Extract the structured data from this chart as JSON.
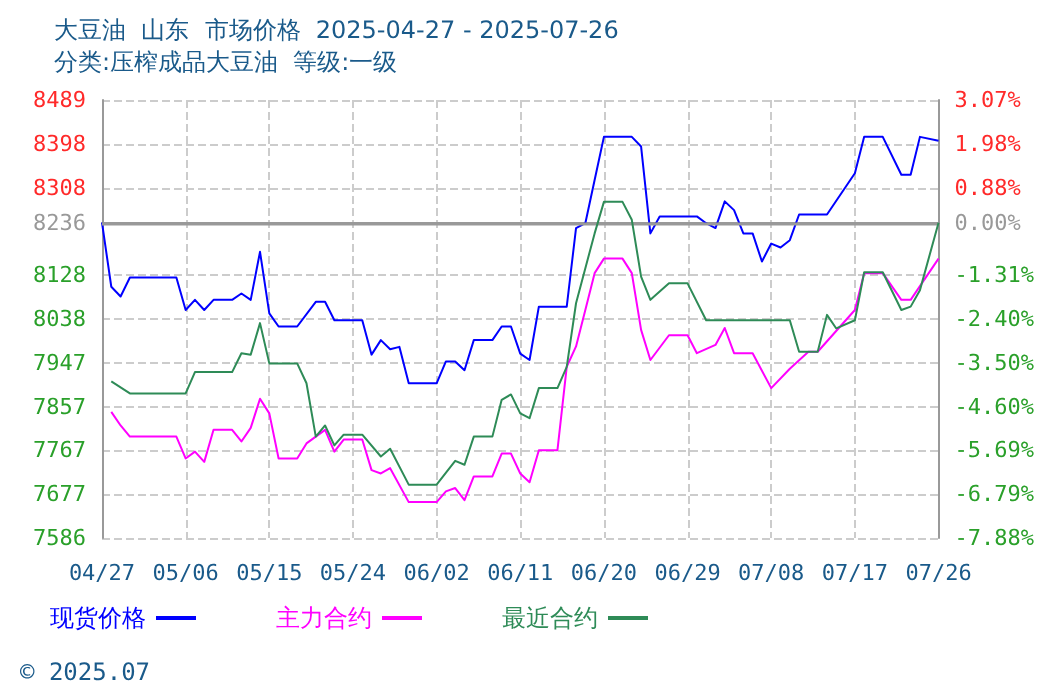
{
  "chart_data": {
    "type": "line",
    "title": "大豆油  山东  市场价格  2025-04-27 - 2025-07-26",
    "subtitle": "分类:压榨成品大豆油  等级:一级",
    "xlim": [
      "2025-04-27",
      "2025-07-26"
    ],
    "xticks": [
      {
        "value": "2025-04-27",
        "label": "04/27"
      },
      {
        "value": "2025-05-06",
        "label": "05/06"
      },
      {
        "value": "2025-05-15",
        "label": "05/15"
      },
      {
        "value": "2025-05-24",
        "label": "05/24"
      },
      {
        "value": "2025-06-02",
        "label": "06/02"
      },
      {
        "value": "2025-06-11",
        "label": "06/11"
      },
      {
        "value": "2025-06-20",
        "label": "06/20"
      },
      {
        "value": "2025-06-29",
        "label": "06/29"
      },
      {
        "value": "2025-07-08",
        "label": "07/08"
      },
      {
        "value": "2025-07-17",
        "label": "07/17"
      },
      {
        "value": "2025-07-26",
        "label": "07/26"
      }
    ],
    "ylim": [
      7586,
      8489
    ],
    "yticks": [
      7586,
      7677,
      7767,
      7857,
      7947,
      8038,
      8128,
      8236,
      8308,
      8398,
      8489
    ],
    "y2lim": [
      -7.88,
      3.07
    ],
    "y2ticks": [
      {
        "value": -7.88,
        "label": "-7.88%"
      },
      {
        "value": -6.79,
        "label": "-6.79%"
      },
      {
        "value": -5.69,
        "label": "-5.69%"
      },
      {
        "value": -4.6,
        "label": "-4.60%"
      },
      {
        "value": -3.5,
        "label": "-3.50%"
      },
      {
        "value": -2.4,
        "label": "-2.40%"
      },
      {
        "value": -1.31,
        "label": "-1.31%"
      },
      {
        "value": 0,
        "label": "0.00%"
      },
      {
        "value": 0.88,
        "label": "0.88%"
      },
      {
        "value": 1.98,
        "label": "1.98%"
      },
      {
        "value": 3.07,
        "label": "3.07%"
      }
    ],
    "ref_lines": [
      {
        "axis": "y",
        "value": 8236,
        "color": "#999999"
      }
    ],
    "grid": true,
    "legend": "bottom",
    "marker": "none",
    "line_style": "solid",
    "annotations": [
      "© 2025.07"
    ],
    "series": [
      {
        "name": "现货价格",
        "color": "#0000ff",
        "x": [
          "2025-04-27",
          "2025-04-28",
          "2025-04-29",
          "2025-04-30",
          "2025-05-05",
          "2025-05-06",
          "2025-05-07",
          "2025-05-08",
          "2025-05-09",
          "2025-05-11",
          "2025-05-12",
          "2025-05-13",
          "2025-05-14",
          "2025-05-15",
          "2025-05-16",
          "2025-05-18",
          "2025-05-20",
          "2025-05-21",
          "2025-05-22",
          "2025-05-25",
          "2025-05-26",
          "2025-05-27",
          "2025-05-28",
          "2025-05-29",
          "2025-05-30",
          "2025-06-02",
          "2025-06-03",
          "2025-06-04",
          "2025-06-05",
          "2025-06-06",
          "2025-06-08",
          "2025-06-09",
          "2025-06-10",
          "2025-06-11",
          "2025-06-12",
          "2025-06-13",
          "2025-06-16",
          "2025-06-17",
          "2025-06-18",
          "2025-06-19",
          "2025-06-20",
          "2025-06-23",
          "2025-06-24",
          "2025-06-25",
          "2025-06-26",
          "2025-06-30",
          "2025-07-01",
          "2025-07-02",
          "2025-07-03",
          "2025-07-04",
          "2025-07-05",
          "2025-07-06",
          "2025-07-07",
          "2025-07-08",
          "2025-07-09",
          "2025-07-10",
          "2025-07-11",
          "2025-07-14",
          "2025-07-17",
          "2025-07-18",
          "2025-07-20",
          "2025-07-22",
          "2025-07-23",
          "2025-07-24",
          "2025-07-26"
        ],
        "values": [
          8236,
          8104,
          8084,
          8123,
          8123,
          8056,
          8077,
          8056,
          8077,
          8077,
          8090,
          8077,
          8176,
          8049,
          8022,
          8022,
          8073,
          8073,
          8035,
          8035,
          7964,
          7994,
          7975,
          7980,
          7905,
          7905,
          7950,
          7950,
          7932,
          7994,
          7994,
          8022,
          8022,
          7966,
          7953,
          8063,
          8063,
          8225,
          8235,
          8324,
          8413,
          8413,
          8393,
          8214,
          8249,
          8249,
          8235,
          8225,
          8280,
          8262,
          8214,
          8214,
          8156,
          8193,
          8185,
          8200,
          8253,
          8253,
          8338,
          8413,
          8413,
          8335,
          8335,
          8413,
          8405
        ]
      },
      {
        "name": "主力合约",
        "color": "#ff00ff",
        "x": [
          "2025-04-28",
          "2025-04-29",
          "2025-04-30",
          "2025-05-05",
          "2025-05-06",
          "2025-05-07",
          "2025-05-08",
          "2025-05-09",
          "2025-05-11",
          "2025-05-12",
          "2025-05-13",
          "2025-05-14",
          "2025-05-15",
          "2025-05-16",
          "2025-05-18",
          "2025-05-19",
          "2025-05-21",
          "2025-05-22",
          "2025-05-23",
          "2025-05-25",
          "2025-05-26",
          "2025-05-27",
          "2025-05-28",
          "2025-05-30",
          "2025-06-02",
          "2025-06-03",
          "2025-06-04",
          "2025-06-05",
          "2025-06-06",
          "2025-06-08",
          "2025-06-09",
          "2025-06-10",
          "2025-06-11",
          "2025-06-12",
          "2025-06-13",
          "2025-06-15",
          "2025-06-16",
          "2025-06-17",
          "2025-06-18",
          "2025-06-19",
          "2025-06-20",
          "2025-06-22",
          "2025-06-23",
          "2025-06-24",
          "2025-06-25",
          "2025-06-27",
          "2025-06-29",
          "2025-06-30",
          "2025-07-02",
          "2025-07-03",
          "2025-07-04",
          "2025-07-06",
          "2025-07-08",
          "2025-07-10",
          "2025-07-12",
          "2025-07-13",
          "2025-07-17",
          "2025-07-18",
          "2025-07-20",
          "2025-07-22",
          "2025-07-23",
          "2025-07-26"
        ],
        "values": [
          7846,
          7818,
          7795,
          7795,
          7750,
          7764,
          7743,
          7809,
          7809,
          7785,
          7813,
          7873,
          7843,
          7750,
          7750,
          7781,
          7809,
          7764,
          7789,
          7789,
          7726,
          7719,
          7730,
          7660,
          7660,
          7682,
          7689,
          7664,
          7713,
          7713,
          7760,
          7760,
          7719,
          7701,
          7767,
          7767,
          7939,
          7981,
          8056,
          8132,
          8162,
          8162,
          8132,
          8015,
          7953,
          8004,
          8004,
          7967,
          7984,
          8019,
          7967,
          7967,
          7895,
          7935,
          7970,
          7970,
          8056,
          8132,
          8132,
          8077,
          8077,
          8162
        ]
      },
      {
        "name": "最近合约",
        "color": "#2e8b57",
        "x": [
          "2025-04-28",
          "2025-04-30",
          "2025-05-06",
          "2025-05-07",
          "2025-05-11",
          "2025-05-12",
          "2025-05-13",
          "2025-05-14",
          "2025-05-15",
          "2025-05-18",
          "2025-05-19",
          "2025-05-20",
          "2025-05-21",
          "2025-05-22",
          "2025-05-23",
          "2025-05-25",
          "2025-05-27",
          "2025-05-28",
          "2025-05-30",
          "2025-06-02",
          "2025-06-04",
          "2025-06-05",
          "2025-06-06",
          "2025-06-08",
          "2025-06-09",
          "2025-06-10",
          "2025-06-11",
          "2025-06-12",
          "2025-06-13",
          "2025-06-15",
          "2025-06-16",
          "2025-06-17",
          "2025-06-19",
          "2025-06-20",
          "2025-06-22",
          "2025-06-23",
          "2025-06-24",
          "2025-06-25",
          "2025-06-27",
          "2025-06-29",
          "2025-07-01",
          "2025-07-10",
          "2025-07-11",
          "2025-07-13",
          "2025-07-14",
          "2025-07-15",
          "2025-07-17",
          "2025-07-18",
          "2025-07-20",
          "2025-07-22",
          "2025-07-23",
          "2025-07-24",
          "2025-07-26"
        ],
        "values": [
          7909,
          7884,
          7884,
          7928,
          7928,
          7967,
          7964,
          8029,
          7946,
          7946,
          7905,
          7795,
          7818,
          7777,
          7799,
          7799,
          7754,
          7770,
          7696,
          7696,
          7745,
          7737,
          7795,
          7795,
          7871,
          7882,
          7843,
          7833,
          7895,
          7895,
          7939,
          8070,
          8214,
          8279,
          8279,
          8242,
          8125,
          8077,
          8111,
          8111,
          8035,
          8035,
          7970,
          7970,
          8046,
          8018,
          8035,
          8134,
          8134,
          8056,
          8063,
          8097,
          8236
        ]
      }
    ]
  }
}
